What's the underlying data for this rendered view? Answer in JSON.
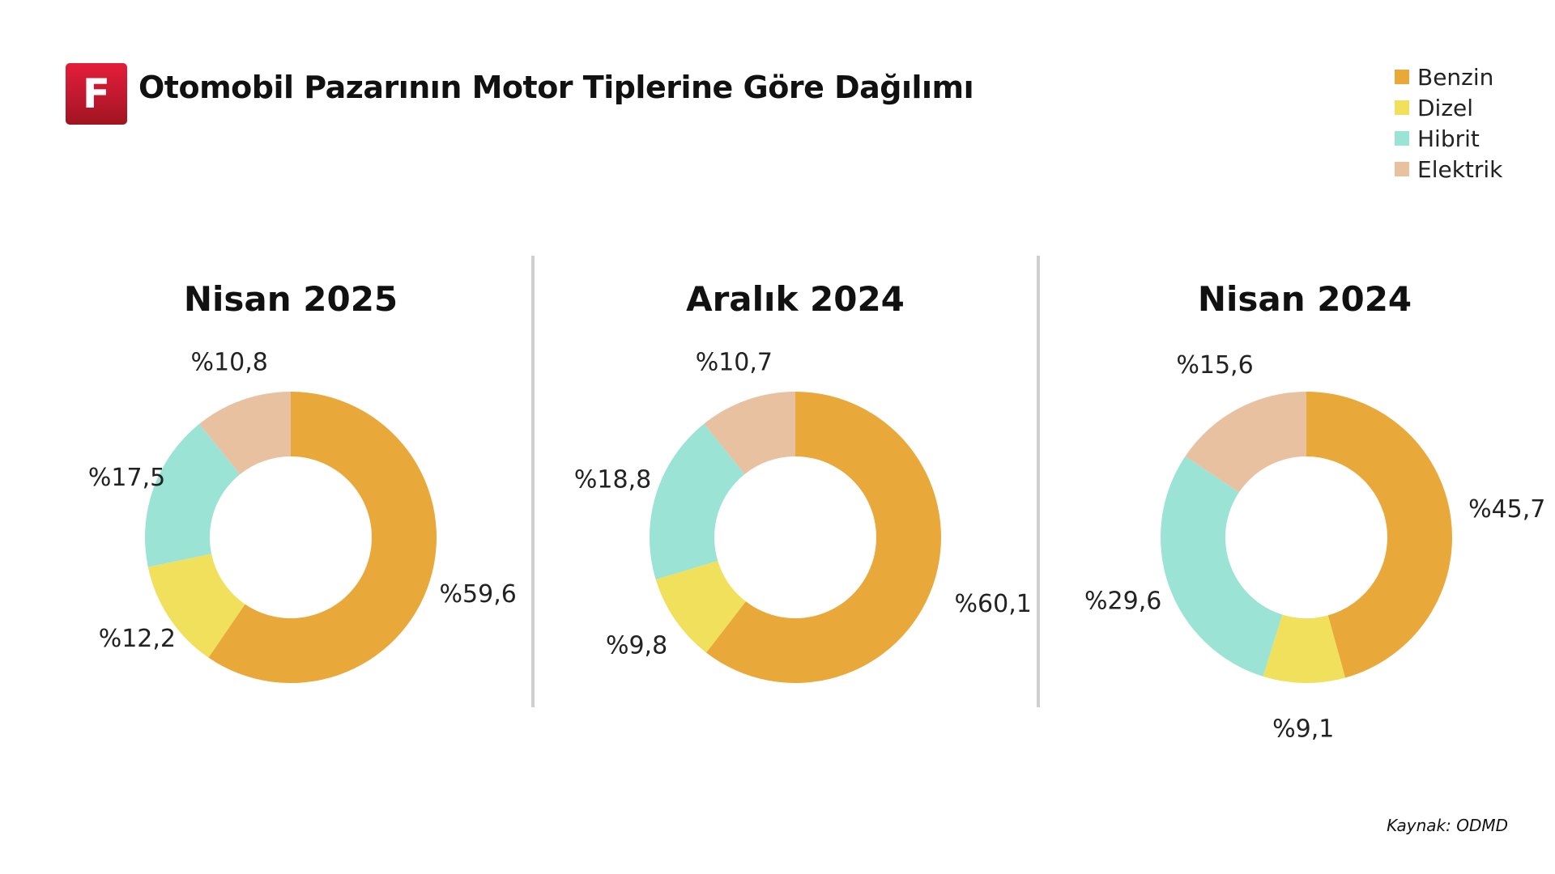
{
  "header": {
    "logo_letter": "F",
    "title": "Otomobil Pazarının Motor Tiplerine Göre Dağılımı"
  },
  "legend": [
    {
      "label": "Benzin",
      "color": "#E9A83A"
    },
    {
      "label": "Dizel",
      "color": "#F0E05C"
    },
    {
      "label": "Hibrit",
      "color": "#9BE3D5"
    },
    {
      "label": "Elektrik",
      "color": "#E8C1A0"
    }
  ],
  "source": "Kaynak: ODMD",
  "chart_data": [
    {
      "type": "pie",
      "title": "Nisan 2025",
      "categories": [
        "Benzin",
        "Dizel",
        "Hibrit",
        "Elektrik"
      ],
      "values": [
        59.6,
        12.2,
        17.5,
        10.8
      ],
      "labels": [
        "%59,6",
        "%12,2",
        "%17,5",
        "%10,8"
      ]
    },
    {
      "type": "pie",
      "title": "Aralık 2024",
      "categories": [
        "Benzin",
        "Dizel",
        "Hibrit",
        "Elektrik"
      ],
      "values": [
        60.1,
        9.8,
        18.8,
        10.7
      ],
      "labels": [
        "%60,1",
        "%9,8",
        "%18,8",
        "%10,7"
      ]
    },
    {
      "type": "pie",
      "title": "Nisan 2024",
      "categories": [
        "Benzin",
        "Dizel",
        "Hibrit",
        "Elektrik"
      ],
      "values": [
        45.7,
        9.1,
        29.6,
        15.6
      ],
      "labels": [
        "%45,7",
        "%9,1",
        "%29,6",
        "%15,6"
      ]
    }
  ]
}
